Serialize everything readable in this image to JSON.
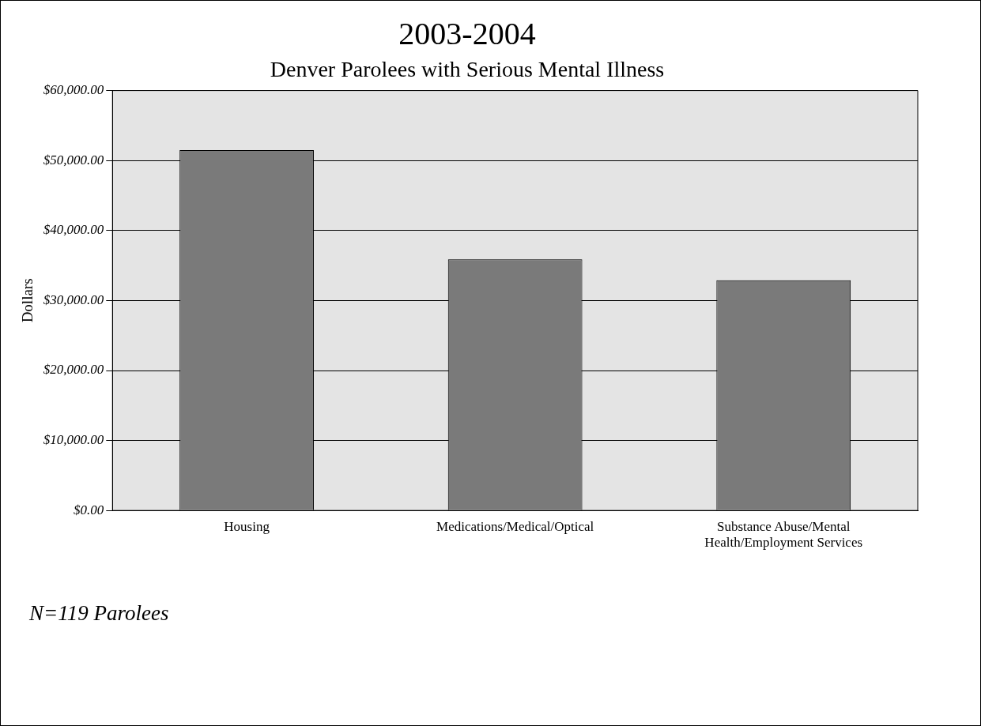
{
  "chart_data": {
    "type": "bar",
    "title": "2003-2004",
    "subtitle": "Denver Parolees with Serious Mental Illness",
    "ylabel": "Dollars",
    "categories": [
      "Housing",
      "Medications/Medical/Optical",
      "Substance Abuse/Mental Health/Employment Services"
    ],
    "values": [
      51500,
      35900,
      32900
    ],
    "color": "#7a7a7a",
    "ylim": [
      0,
      60000
    ],
    "yticks": [
      {
        "value": 0,
        "label": "$0.00"
      },
      {
        "value": 10000,
        "label": "$10,000.00"
      },
      {
        "value": 20000,
        "label": "$20,000.00"
      },
      {
        "value": 30000,
        "label": "$30,000.00"
      },
      {
        "value": 40000,
        "label": "$40,000.00"
      },
      {
        "value": 50000,
        "label": "$50,000.00"
      },
      {
        "value": 60000,
        "label": "$60,000.00"
      }
    ],
    "grid": "y",
    "legend": false,
    "annotations": [
      "N=119 Parolees"
    ]
  }
}
